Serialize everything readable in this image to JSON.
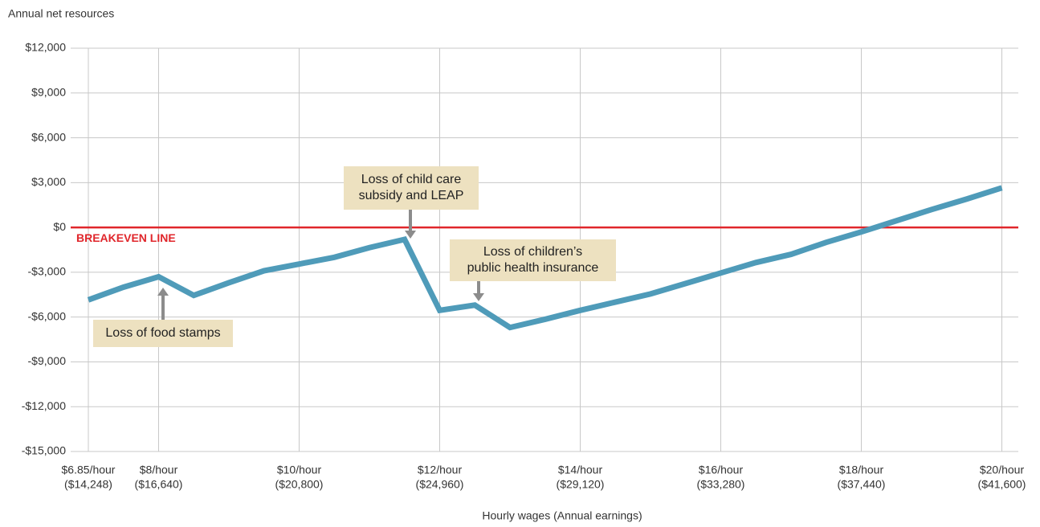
{
  "chart_data": {
    "type": "line",
    "y_axis_label": "Annual net resources",
    "x_axis_label": "Hourly wages (Annual earnings)",
    "categories": [
      "$6.85/hour",
      null,
      "$8/hour",
      null,
      null,
      null,
      "$10/hour",
      null,
      null,
      null,
      "$12/hour",
      null,
      null,
      null,
      "$14/hour",
      null,
      null,
      null,
      "$16/hour",
      null,
      null,
      null,
      "$18/hour",
      null,
      null,
      null,
      "$20/hour"
    ],
    "category_earnings": [
      "($14,248)",
      null,
      "($16,640)",
      null,
      null,
      null,
      "($20,800)",
      null,
      null,
      null,
      "($24,960)",
      null,
      null,
      null,
      "($29,120)",
      null,
      null,
      null,
      "($33,280)",
      null,
      null,
      null,
      "($37,440)",
      null,
      null,
      null,
      "($41,600)"
    ],
    "series": [
      {
        "name": "Annual net resources",
        "color": "#4f9bb9",
        "values": [
          -4850,
          -4000,
          -3300,
          -4550,
          -3700,
          -2900,
          -2450,
          -2000,
          -1350,
          -800,
          -5550,
          -5200,
          -6700,
          -6150,
          -5550,
          -5000,
          -4450,
          -3750,
          -3050,
          -2350,
          -1800,
          -1000,
          -300,
          450,
          1200,
          1900,
          2650
        ]
      }
    ],
    "ylim": [
      -15000,
      12000
    ],
    "yticks": [
      {
        "value": -15000,
        "label": "-$15,000"
      },
      {
        "value": -12000,
        "label": "-$12,000"
      },
      {
        "value": -9000,
        "label": "-$9,000"
      },
      {
        "value": -6000,
        "label": "-$6,000"
      },
      {
        "value": -3000,
        "label": "-$3,000"
      },
      {
        "value": 0,
        "label": "$0"
      },
      {
        "value": 3000,
        "label": "$3,000"
      },
      {
        "value": 6000,
        "label": "$6,000"
      },
      {
        "value": 9000,
        "label": "$9,000"
      },
      {
        "value": 12000,
        "label": "$12,000"
      }
    ],
    "grid": true,
    "reference_line": {
      "value": 0,
      "label": "BREAKEVEN LINE",
      "color": "#e0262b"
    },
    "annotations": [
      {
        "lines": [
          "Loss of food stamps"
        ],
        "category_index": 2
      },
      {
        "lines": [
          "Loss of child care",
          "subsidy and LEAP"
        ],
        "category_index": 9
      },
      {
        "lines": [
          "Loss of children’s",
          "public health insurance"
        ],
        "category_index": 11
      }
    ]
  }
}
